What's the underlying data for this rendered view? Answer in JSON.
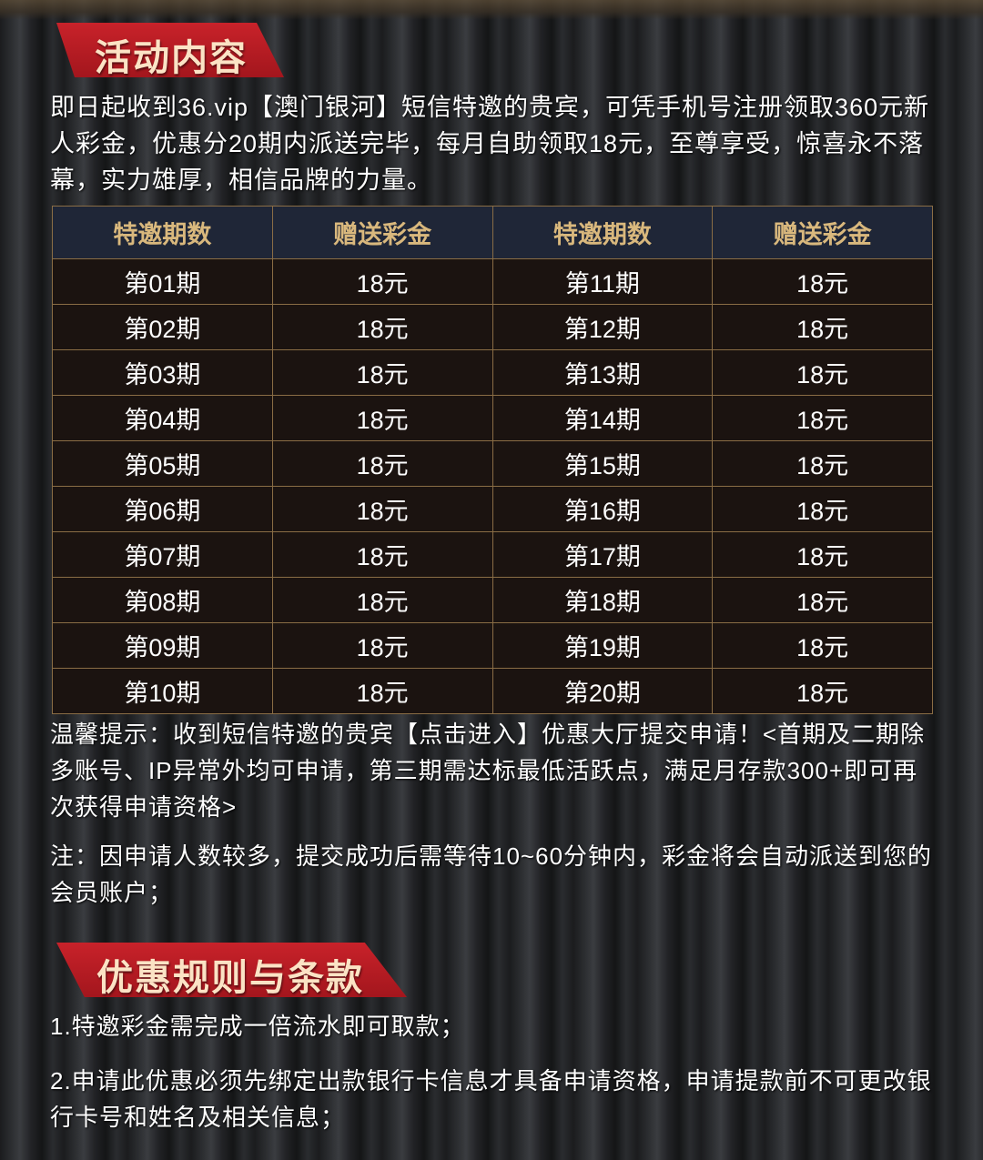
{
  "section1": {
    "title": "活动内容",
    "intro": "即日起收到36.vip【澳门银河】短信特邀的贵宾，可凭手机号注册领取360元新人彩金，优惠分20期内派送完毕，每月自助领取18元，至尊享受，惊喜永不落幕，实力雄厚，相信品牌的力量。"
  },
  "table": {
    "headers": [
      "特邀期数",
      "赠送彩金",
      "特邀期数",
      "赠送彩金"
    ],
    "rows": [
      [
        "第01期",
        "18元",
        "第11期",
        "18元"
      ],
      [
        "第02期",
        "18元",
        "第12期",
        "18元"
      ],
      [
        "第03期",
        "18元",
        "第13期",
        "18元"
      ],
      [
        "第04期",
        "18元",
        "第14期",
        "18元"
      ],
      [
        "第05期",
        "18元",
        "第15期",
        "18元"
      ],
      [
        "第06期",
        "18元",
        "第16期",
        "18元"
      ],
      [
        "第07期",
        "18元",
        "第17期",
        "18元"
      ],
      [
        "第08期",
        "18元",
        "第18期",
        "18元"
      ],
      [
        "第09期",
        "18元",
        "第19期",
        "18元"
      ],
      [
        "第10期",
        "18元",
        "第20期",
        "18元"
      ]
    ]
  },
  "tip": "温馨提示：收到短信特邀的贵宾【点击进入】优惠大厅提交申请！<首期及二期除多账号、IP异常外均可申请，第三期需达标最低活跃点，满足月存款300+即可再次获得申请资格>",
  "note": "注：因申请人数较多，提交成功后需等待10~60分钟内，彩金将会自动派送到您的会员账户；",
  "section2": {
    "title": "优惠规则与条款",
    "rules": [
      "1.特邀彩金需完成一倍流水即可取款；",
      "2.申请此优惠必须先绑定出款银行卡信息才具备申请资格，申请提款前不可更改银行卡号和姓名及相关信息；"
    ]
  },
  "colors": {
    "banner_red": "#b81c24",
    "header_gold": "#d9b87d",
    "header_bg": "#1f2637",
    "table_border": "#8a6d45"
  }
}
